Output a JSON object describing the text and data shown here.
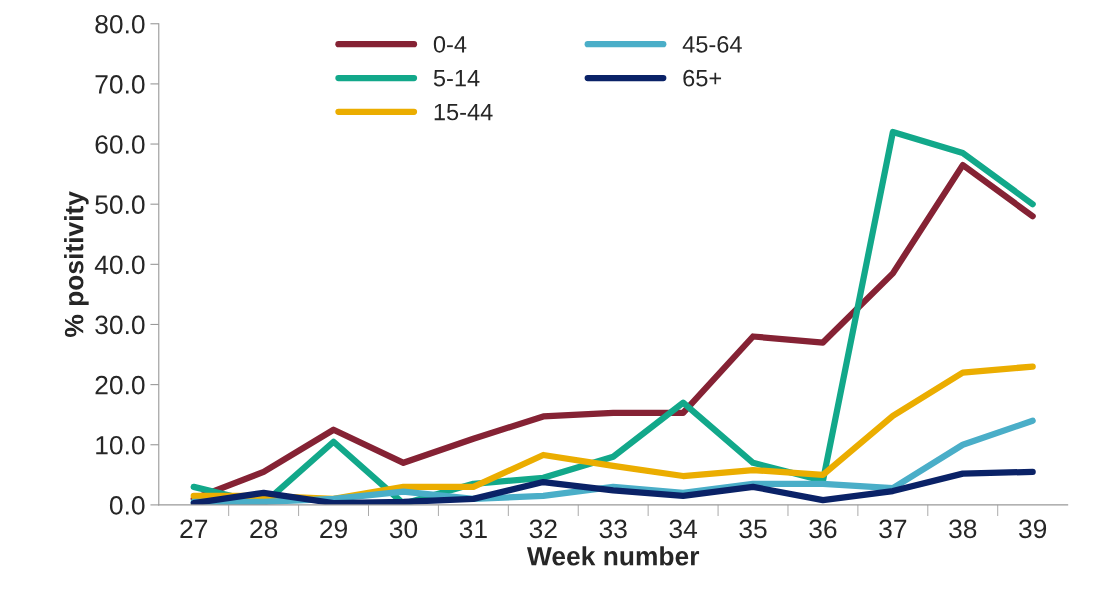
{
  "chart_data": {
    "type": "line",
    "xlabel": "Week number",
    "ylabel": "% positivity",
    "categories": [
      "27",
      "28",
      "29",
      "30",
      "31",
      "32",
      "33",
      "34",
      "35",
      "36",
      "37",
      "38",
      "39"
    ],
    "series": [
      {
        "name": "0-4",
        "color": "#852234",
        "values": [
          1.0,
          5.5,
          12.5,
          7.0,
          11.0,
          14.7,
          15.3,
          15.3,
          28.0,
          27.0,
          38.5,
          56.5,
          48.0
        ]
      },
      {
        "name": "5-14",
        "color": "#12a88a",
        "values": [
          3.0,
          0.2,
          10.5,
          0.2,
          3.5,
          4.5,
          8.0,
          17.0,
          7.0,
          4.0,
          62.0,
          58.5,
          50.0
        ]
      },
      {
        "name": "15-44",
        "color": "#ebad00",
        "values": [
          1.5,
          1.5,
          1.0,
          3.0,
          3.0,
          8.3,
          6.5,
          4.8,
          5.8,
          5.0,
          14.8,
          22.0,
          23.0
        ]
      },
      {
        "name": "45-64",
        "color": "#4aaec8",
        "values": [
          0.5,
          0.5,
          1.0,
          2.2,
          1.0,
          1.5,
          3.0,
          2.0,
          3.5,
          3.5,
          2.8,
          10.0,
          14.0
        ]
      },
      {
        "name": "65+",
        "color": "#0a2267",
        "values": [
          0.3,
          2.0,
          0.3,
          0.5,
          1.0,
          3.8,
          2.4,
          1.5,
          3.0,
          0.8,
          2.3,
          5.2,
          5.5
        ]
      }
    ],
    "ylim": [
      0,
      80
    ],
    "yticks": [
      {
        "value": 0,
        "label": "0.0"
      },
      {
        "value": 10,
        "label": "10.0"
      },
      {
        "value": 20,
        "label": "20.0"
      },
      {
        "value": 30,
        "label": "30.0"
      },
      {
        "value": 40,
        "label": "40.0"
      },
      {
        "value": 50,
        "label": "50.0"
      },
      {
        "value": 60,
        "label": "60.0"
      },
      {
        "value": 70,
        "label": "70.0"
      },
      {
        "value": 80,
        "label": "80.0"
      }
    ],
    "grid": false,
    "legend": "top",
    "marker": "none",
    "line_style": "solid"
  }
}
